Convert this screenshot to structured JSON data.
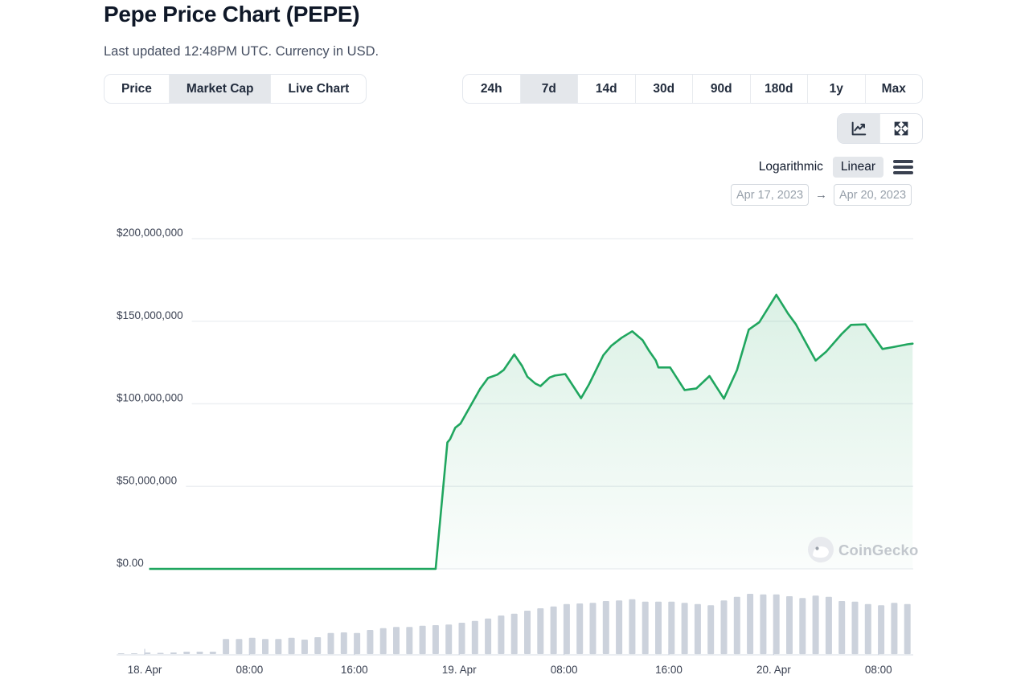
{
  "page": {
    "title": "Pepe Price Chart (PEPE)",
    "subtitle": "Last updated 12:48PM UTC. Currency in USD."
  },
  "view_tabs": {
    "items": [
      {
        "label": "Price",
        "selected": false
      },
      {
        "label": "Market Cap",
        "selected": true
      },
      {
        "label": "Live Chart",
        "selected": false
      }
    ]
  },
  "range_tabs": {
    "items": [
      {
        "label": "24h",
        "selected": false
      },
      {
        "label": "7d",
        "selected": true
      },
      {
        "label": "14d",
        "selected": false
      },
      {
        "label": "30d",
        "selected": false
      },
      {
        "label": "90d",
        "selected": false
      },
      {
        "label": "180d",
        "selected": false
      },
      {
        "label": "1y",
        "selected": false
      },
      {
        "label": "Max",
        "selected": false
      }
    ]
  },
  "chart_toolbar": {
    "buttons": [
      {
        "icon": "line-chart-icon",
        "selected": true
      },
      {
        "icon": "expand-icon",
        "selected": false
      }
    ]
  },
  "scale_toggle": {
    "options": [
      {
        "label": "Logarithmic",
        "selected": false
      },
      {
        "label": "Linear",
        "selected": true
      }
    ],
    "menu_icon": "hamburger-menu-icon"
  },
  "date_range": {
    "start": "Apr 17, 2023",
    "end": "Apr 20, 2023",
    "arrow_glyph": "→"
  },
  "watermark": {
    "label": "CoinGecko",
    "icon": "coingecko-gecko-icon"
  },
  "colors": {
    "accent_green": "#20a65f",
    "area_top": "rgba(32,166,95,0.16)",
    "area_bottom": "rgba(32,166,95,0.02)",
    "volume_bar": "#ccd2dc",
    "grid": "#eef0f3",
    "axis_line": "#dfe3ea",
    "tick": "#ccd2de",
    "label_text": "#3a4152",
    "selected_bg": "#e4e7eb",
    "watermark_text": "#c2c7cd",
    "watermark_circle": "#e8eaee"
  },
  "chart_data": {
    "type": "line",
    "title": "Pepe Market Cap (PEPE), USD",
    "x_unit": "hours since 2023-04-18 00:00 UTC",
    "y_unit": "USD market cap",
    "xlim": [
      -2.1,
      58.6
    ],
    "ylim": [
      0,
      200000000
    ],
    "grid": true,
    "legend_position": "none",
    "y_axis": {
      "ticks": [
        {
          "value": 200000000,
          "label": "$200,000,000"
        },
        {
          "value": 150000000,
          "label": "$150,000,000"
        },
        {
          "value": 100000000,
          "label": "$100,000,000"
        },
        {
          "value": 50000000,
          "label": "$50,000,000"
        },
        {
          "value": 0,
          "label": "$0.00"
        }
      ]
    },
    "x_axis": {
      "ticks": [
        {
          "hour": 0,
          "label": "18. Apr"
        },
        {
          "hour": 8,
          "label": "08:00"
        },
        {
          "hour": 16,
          "label": "16:00"
        },
        {
          "hour": 24,
          "label": "19. Apr"
        },
        {
          "hour": 32,
          "label": "08:00"
        },
        {
          "hour": 40,
          "label": "16:00"
        },
        {
          "hour": 48,
          "label": "20. Apr"
        },
        {
          "hour": 56,
          "label": "08:00"
        }
      ]
    },
    "series": [
      {
        "name": "Market Cap",
        "color": "#20a65f",
        "points": [
          [
            -2.1,
            0
          ],
          [
            8,
            0
          ],
          [
            16,
            0
          ],
          [
            22.2,
            0
          ],
          [
            23.1,
            76600000
          ],
          [
            23.3,
            78500000
          ],
          [
            23.7,
            85500000
          ],
          [
            24.1,
            88000000
          ],
          [
            25.6,
            109100000
          ],
          [
            26.2,
            115600000
          ],
          [
            26.9,
            117600000
          ],
          [
            27.4,
            120500000
          ],
          [
            28.2,
            129900000
          ],
          [
            28.8,
            122900000
          ],
          [
            29.2,
            116400000
          ],
          [
            29.8,
            112300000
          ],
          [
            30.2,
            110700000
          ],
          [
            30.9,
            115900000
          ],
          [
            31.3,
            117100000
          ],
          [
            32.1,
            118000000
          ],
          [
            33.3,
            103400000
          ],
          [
            33.9,
            111700000
          ],
          [
            35,
            129400000
          ],
          [
            35.6,
            135100000
          ],
          [
            36.4,
            140000000
          ],
          [
            37.2,
            143900000
          ],
          [
            38,
            138500000
          ],
          [
            38.5,
            131900000
          ],
          [
            39,
            126300000
          ],
          [
            39.2,
            122000000
          ],
          [
            40.1,
            122000000
          ],
          [
            41.2,
            108300000
          ],
          [
            42.1,
            109300000
          ],
          [
            43.1,
            116800000
          ],
          [
            44.2,
            103100000
          ],
          [
            45.2,
            120500000
          ],
          [
            46.1,
            144900000
          ],
          [
            46.9,
            149400000
          ],
          [
            48.2,
            166000000
          ],
          [
            49.1,
            154600000
          ],
          [
            49.7,
            148100000
          ],
          [
            50.3,
            139200000
          ],
          [
            51.2,
            126200000
          ],
          [
            52,
            131500000
          ],
          [
            53.2,
            142400000
          ],
          [
            53.9,
            147800000
          ],
          [
            55,
            148100000
          ],
          [
            56.3,
            133200000
          ],
          [
            57.1,
            134300000
          ],
          [
            58.2,
            136000000
          ],
          [
            58.6,
            136400000
          ]
        ]
      }
    ],
    "volume": {
      "name": "Volume (unlabeled axis, heights relative to max)",
      "start_hour": -1.8,
      "step_hours": 1,
      "max_rel": 1,
      "rel_heights": [
        0.013,
        0.013,
        0.027,
        0.02,
        0.027,
        0.04,
        0.04,
        0.04,
        0.25,
        0.25,
        0.27,
        0.25,
        0.25,
        0.27,
        0.24,
        0.28,
        0.35,
        0.36,
        0.35,
        0.4,
        0.43,
        0.45,
        0.45,
        0.47,
        0.48,
        0.49,
        0.52,
        0.55,
        0.59,
        0.64,
        0.67,
        0.72,
        0.76,
        0.79,
        0.83,
        0.84,
        0.85,
        0.88,
        0.89,
        0.91,
        0.87,
        0.87,
        0.87,
        0.85,
        0.83,
        0.81,
        0.89,
        0.95,
        1,
        0.99,
        0.99,
        0.96,
        0.93,
        0.97,
        0.95,
        0.88,
        0.87,
        0.83,
        0.81,
        0.85,
        0.83
      ]
    }
  }
}
